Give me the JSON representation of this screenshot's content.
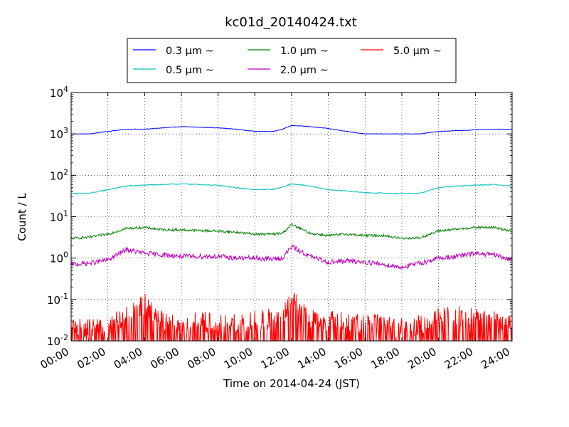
{
  "chart_data": {
    "type": "line",
    "title": "kc01d_20140424.txt",
    "xlabel": "Time on 2014-04-24 (JST)",
    "ylabel": "Count / L",
    "yscale": "log",
    "ylim": [
      0.01,
      10000
    ],
    "xlim": [
      "00:00",
      "24:00"
    ],
    "grid": true,
    "legend_placement": "top-center, above plot",
    "x_ticks": [
      "00:00",
      "02:00",
      "04:00",
      "06:00",
      "08:00",
      "10:00",
      "12:00",
      "14:00",
      "16:00",
      "18:00",
      "20:00",
      "22:00",
      "24:00"
    ],
    "y_ticks": [
      {
        "value": 0.01,
        "base": "10",
        "exp": "-2"
      },
      {
        "value": 0.1,
        "base": "10",
        "exp": "-1"
      },
      {
        "value": 1,
        "base": "10",
        "exp": "0"
      },
      {
        "value": 10,
        "base": "10",
        "exp": "1"
      },
      {
        "value": 100,
        "base": "10",
        "exp": "2"
      },
      {
        "value": 1000,
        "base": "10",
        "exp": "3"
      },
      {
        "value": 10000,
        "base": "10",
        "exp": "4"
      }
    ],
    "x": [
      "00:00",
      "01:00",
      "02:00",
      "03:00",
      "04:00",
      "05:00",
      "06:00",
      "07:00",
      "08:00",
      "09:00",
      "10:00",
      "11:00",
      "11:30",
      "12:00",
      "13:00",
      "14:00",
      "15:00",
      "16:00",
      "17:00",
      "18:00",
      "19:00",
      "20:00",
      "21:00",
      "22:00",
      "23:00",
      "24:00"
    ],
    "series": [
      {
        "name": "0.3 μm ~",
        "color": "#0000ff",
        "values": [
          1000,
          1000,
          1150,
          1300,
          1300,
          1400,
          1500,
          1450,
          1400,
          1300,
          1150,
          1150,
          1300,
          1600,
          1500,
          1350,
          1150,
          1000,
          1000,
          1000,
          1000,
          1150,
          1200,
          1250,
          1300,
          1300
        ]
      },
      {
        "name": "0.5 μm ~",
        "color": "#00bfbf",
        "values": [
          36,
          37,
          45,
          55,
          58,
          60,
          62,
          60,
          57,
          50,
          45,
          46,
          52,
          62,
          55,
          45,
          42,
          38,
          37,
          36,
          37,
          50,
          55,
          58,
          60,
          55
        ]
      },
      {
        "name": "1.0 μm ~",
        "color": "#008000",
        "values": [
          3.0,
          3.2,
          3.8,
          5.2,
          5.5,
          4.8,
          4.8,
          4.6,
          4.5,
          4.2,
          3.8,
          3.8,
          4.0,
          6.5,
          4.0,
          3.5,
          3.8,
          3.5,
          3.5,
          3.0,
          3.1,
          4.5,
          5.0,
          5.5,
          5.5,
          4.5
        ]
      },
      {
        "name": "2.0 μm ~",
        "color": "#bf00bf",
        "values": [
          0.7,
          0.75,
          0.9,
          1.6,
          1.3,
          1.2,
          1.1,
          1.1,
          1.1,
          1.0,
          1.0,
          0.95,
          1.0,
          1.9,
          1.1,
          0.8,
          0.85,
          0.8,
          0.7,
          0.6,
          0.75,
          1.0,
          1.1,
          1.3,
          1.2,
          0.9
        ]
      },
      {
        "name": "5.0 μm ~",
        "color": "#ff0000",
        "values": [
          0.025,
          0.02,
          0.025,
          0.04,
          0.08,
          0.03,
          0.025,
          0.03,
          0.025,
          0.025,
          0.03,
          0.035,
          0.04,
          0.1,
          0.035,
          0.03,
          0.03,
          0.025,
          0.025,
          0.02,
          0.025,
          0.035,
          0.04,
          0.035,
          0.03,
          0.025
        ]
      }
    ]
  }
}
